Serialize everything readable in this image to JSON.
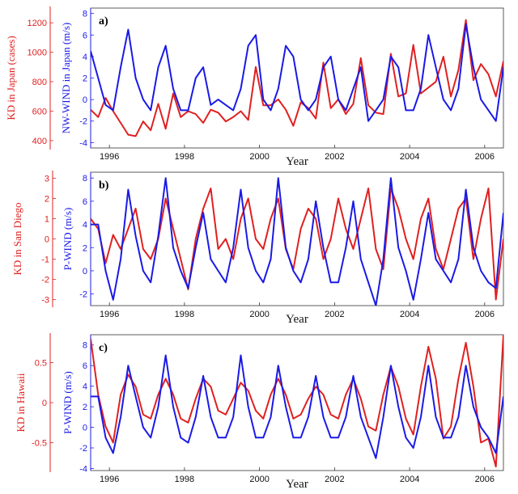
{
  "colors": {
    "kd": "#e02020",
    "wind": "#1a1ae6",
    "frame": "#333333"
  },
  "chart_data": [
    {
      "type": "line",
      "panel_label": "a)",
      "xlabel": "Year",
      "x_ticks": [
        "1996",
        "1998",
        "2000",
        "2002",
        "2004",
        "2006"
      ],
      "xlim": [
        1995.5,
        2006.5
      ],
      "y_left": {
        "label": "KD in Japan (cases)",
        "ticks": [
          "400",
          "600",
          "800",
          "1000",
          "1200"
        ],
        "lim": [
          350,
          1300
        ]
      },
      "y_right": {
        "label": "NW-WIND in Japan (m/s)",
        "ticks": [
          "-4",
          "-2",
          "0",
          "2",
          "4",
          "6",
          "8"
        ],
        "lim": [
          -4.5,
          8.5
        ]
      },
      "series": [
        {
          "axis": "left",
          "color_key": "kd",
          "x": [
            1995.5,
            1995.7,
            1995.9,
            1996.1,
            1996.3,
            1996.5,
            1996.7,
            1996.9,
            1997.1,
            1997.3,
            1997.5,
            1997.7,
            1997.9,
            1998.1,
            1998.3,
            1998.5,
            1998.7,
            1998.9,
            1999.1,
            1999.3,
            1999.5,
            1999.7,
            1999.9,
            2000.1,
            2000.3,
            2000.5,
            2000.7,
            2000.9,
            2001.1,
            2001.3,
            2001.5,
            2001.7,
            2001.9,
            2002.1,
            2002.3,
            2002.5,
            2002.7,
            2002.9,
            2003.1,
            2003.3,
            2003.5,
            2003.7,
            2003.9,
            2004.1,
            2004.3,
            2004.5,
            2004.7,
            2004.9,
            2005.1,
            2005.3,
            2005.5,
            2005.7,
            2005.9,
            2006.1,
            2006.3,
            2006.5
          ],
          "y": [
            610,
            560,
            690,
            600,
            520,
            440,
            430,
            530,
            470,
            650,
            480,
            720,
            560,
            600,
            580,
            520,
            610,
            590,
            530,
            560,
            600,
            540,
            900,
            640,
            640,
            680,
            610,
            500,
            660,
            620,
            550,
            930,
            620,
            680,
            580,
            650,
            960,
            640,
            590,
            580,
            990,
            700,
            720,
            1050,
            720,
            760,
            800,
            970,
            700,
            880,
            1220,
            810,
            920,
            850,
            700,
            940
          ]
        },
        {
          "axis": "right",
          "color_key": "wind",
          "x": [
            1995.5,
            1995.7,
            1995.9,
            1996.1,
            1996.3,
            1996.5,
            1996.7,
            1996.9,
            1997.1,
            1997.3,
            1997.5,
            1997.7,
            1997.9,
            1998.1,
            1998.3,
            1998.5,
            1998.7,
            1998.9,
            1999.1,
            1999.3,
            1999.5,
            1999.7,
            1999.9,
            2000.1,
            2000.3,
            2000.5,
            2000.7,
            2000.9,
            2001.1,
            2001.3,
            2001.5,
            2001.7,
            2001.9,
            2002.1,
            2002.3,
            2002.5,
            2002.7,
            2002.9,
            2003.1,
            2003.3,
            2003.5,
            2003.7,
            2003.9,
            2004.1,
            2004.3,
            2004.5,
            2004.7,
            2004.9,
            2005.1,
            2005.3,
            2005.5,
            2005.7,
            2005.9,
            2006.1,
            2006.3,
            2006.5
          ],
          "y": [
            4.5,
            2,
            -0.5,
            -1,
            3,
            6.5,
            2,
            0,
            -1,
            3,
            5,
            1,
            -1,
            -1,
            2,
            3,
            -0.5,
            0,
            -0.5,
            -1,
            1,
            5,
            6,
            0,
            -1,
            1,
            5,
            4,
            0,
            -1,
            0,
            3,
            4,
            0,
            -1,
            1,
            3,
            -2,
            -1,
            0,
            4,
            3,
            -1,
            -1,
            1,
            6,
            3,
            0,
            -1,
            1,
            7,
            3,
            0,
            -1,
            -2,
            3
          ]
        }
      ]
    },
    {
      "type": "line",
      "panel_label": "b)",
      "xlabel": "Year",
      "x_ticks": [
        "1996",
        "1998",
        "2000",
        "2002",
        "2004",
        "2006"
      ],
      "xlim": [
        1995.5,
        2006.5
      ],
      "y_left": {
        "label": "KD in San Diego",
        "ticks": [
          "-3",
          "-2",
          "-1",
          "0",
          "1",
          "2",
          "3"
        ],
        "lim": [
          -3.3,
          3.3
        ]
      },
      "y_right": {
        "label": "P-WIND (m/s)",
        "ticks": [
          "-2",
          "0",
          "2",
          "4",
          "6",
          "8"
        ],
        "lim": [
          -3,
          8.5
        ]
      },
      "series": [
        {
          "axis": "left",
          "color_key": "kd",
          "x": [
            1995.5,
            1995.7,
            1995.9,
            1996.1,
            1996.3,
            1996.5,
            1996.7,
            1996.9,
            1997.1,
            1997.3,
            1997.5,
            1997.7,
            1997.9,
            1998.1,
            1998.3,
            1998.5,
            1998.7,
            1998.9,
            1999.1,
            1999.3,
            1999.5,
            1999.7,
            1999.9,
            2000.1,
            2000.3,
            2000.5,
            2000.7,
            2000.9,
            2001.1,
            2001.3,
            2001.5,
            2001.7,
            2001.9,
            2002.1,
            2002.3,
            2002.5,
            2002.7,
            2002.9,
            2003.1,
            2003.3,
            2003.5,
            2003.7,
            2003.9,
            2004.1,
            2004.3,
            2004.5,
            2004.7,
            2004.9,
            2005.1,
            2005.3,
            2005.5,
            2005.7,
            2005.9,
            2006.1,
            2006.3,
            2006.5
          ],
          "y": [
            1,
            0.5,
            -1.2,
            0.2,
            -0.5,
            0.5,
            1.5,
            -0.5,
            -1,
            0,
            2,
            0.5,
            -1,
            -2.5,
            0,
            1.5,
            2.5,
            -0.5,
            0,
            -1,
            1,
            2,
            0,
            -0.5,
            1,
            2,
            -0.5,
            -1.5,
            0.5,
            1.5,
            1,
            -1,
            0,
            2,
            0.5,
            -0.5,
            1,
            2.5,
            -0.5,
            -1.5,
            2.5,
            1.5,
            0,
            -1,
            1,
            2,
            -0.5,
            -1.5,
            0,
            1.5,
            2,
            -1,
            1,
            2.5,
            -3,
            0
          ]
        },
        {
          "axis": "right",
          "color_key": "wind",
          "x": [
            1995.5,
            1995.7,
            1995.9,
            1996.1,
            1996.3,
            1996.5,
            1996.7,
            1996.9,
            1997.1,
            1997.3,
            1997.5,
            1997.7,
            1997.9,
            1998.1,
            1998.3,
            1998.5,
            1998.7,
            1998.9,
            1999.1,
            1999.3,
            1999.5,
            1999.7,
            1999.9,
            2000.1,
            2000.3,
            2000.5,
            2000.7,
            2000.9,
            2001.1,
            2001.3,
            2001.5,
            2001.7,
            2001.9,
            2002.1,
            2002.3,
            2002.5,
            2002.7,
            2002.9,
            2003.1,
            2003.3,
            2003.5,
            2003.7,
            2003.9,
            2004.1,
            2004.3,
            2004.5,
            2004.7,
            2004.9,
            2005.1,
            2005.3,
            2005.5,
            2005.7,
            2005.9,
            2006.1,
            2006.3,
            2006.5
          ],
          "y": [
            4,
            4,
            0,
            -2.5,
            1,
            7,
            3,
            0,
            -1,
            3,
            8,
            2,
            0,
            -1.5,
            2,
            5,
            1,
            0,
            -1,
            2,
            7,
            2,
            0,
            -1,
            1,
            8,
            2,
            0,
            -1,
            1,
            6,
            2,
            -1,
            -1,
            2,
            6,
            1,
            -1,
            -3,
            1,
            8,
            2,
            0,
            -2.5,
            1,
            5,
            1,
            0,
            -1,
            1,
            7,
            2,
            0,
            -1,
            -1.5,
            5
          ]
        }
      ]
    },
    {
      "type": "line",
      "panel_label": "c)",
      "xlabel": "Year",
      "x_ticks": [
        "1996",
        "1998",
        "2000",
        "2002",
        "2004",
        "2006"
      ],
      "xlim": [
        1995.5,
        2006.5
      ],
      "y_left": {
        "label": "KD in Hawaii",
        "ticks": [
          "-0.5",
          "0",
          "0.5"
        ],
        "lim": [
          -0.85,
          0.85
        ]
      },
      "y_right": {
        "label": "P-WIND (m/s)",
        "ticks": [
          "-4",
          "-2",
          "0",
          "2",
          "4",
          "6",
          "8"
        ],
        "lim": [
          -4.2,
          9
        ]
      },
      "series": [
        {
          "axis": "left",
          "color_key": "kd",
          "x": [
            1995.5,
            1995.7,
            1995.9,
            1996.1,
            1996.3,
            1996.5,
            1996.7,
            1996.9,
            1997.1,
            1997.3,
            1997.5,
            1997.7,
            1997.9,
            1998.1,
            1998.3,
            1998.5,
            1998.7,
            1998.9,
            1999.1,
            1999.3,
            1999.5,
            1999.7,
            1999.9,
            2000.1,
            2000.3,
            2000.5,
            2000.7,
            2000.9,
            2001.1,
            2001.3,
            2001.5,
            2001.7,
            2001.9,
            2002.1,
            2002.3,
            2002.5,
            2002.7,
            2002.9,
            2003.1,
            2003.3,
            2003.5,
            2003.7,
            2003.9,
            2004.1,
            2004.3,
            2004.5,
            2004.7,
            2004.9,
            2005.1,
            2005.3,
            2005.5,
            2005.7,
            2005.9,
            2006.1,
            2006.3,
            2006.5
          ],
          "y": [
            0.8,
            0.1,
            -0.3,
            -0.5,
            0.1,
            0.35,
            0.2,
            -0.15,
            -0.2,
            0.1,
            0.3,
            0.1,
            -0.2,
            -0.25,
            0.05,
            0.3,
            0.2,
            -0.1,
            -0.15,
            0.05,
            0.25,
            0.15,
            -0.1,
            -0.2,
            0.1,
            0.3,
            0.1,
            -0.2,
            -0.15,
            0.05,
            0.2,
            0.1,
            -0.15,
            -0.2,
            0.1,
            0.3,
            0.05,
            -0.3,
            -0.35,
            0.1,
            0.45,
            0.2,
            -0.2,
            -0.4,
            0.2,
            0.7,
            0.3,
            -0.45,
            -0.3,
            0.3,
            0.75,
            0.2,
            -0.5,
            -0.45,
            -0.8,
            0.85
          ]
        },
        {
          "axis": "right",
          "color_key": "wind",
          "x": [
            1995.5,
            1995.7,
            1995.9,
            1996.1,
            1996.3,
            1996.5,
            1996.7,
            1996.9,
            1997.1,
            1997.3,
            1997.5,
            1997.7,
            1997.9,
            1998.1,
            1998.3,
            1998.5,
            1998.7,
            1998.9,
            1999.1,
            1999.3,
            1999.5,
            1999.7,
            1999.9,
            2000.1,
            2000.3,
            2000.5,
            2000.7,
            2000.9,
            2001.1,
            2001.3,
            2001.5,
            2001.7,
            2001.9,
            2002.1,
            2002.3,
            2002.5,
            2002.7,
            2002.9,
            2003.1,
            2003.3,
            2003.5,
            2003.7,
            2003.9,
            2004.1,
            2004.3,
            2004.5,
            2004.7,
            2004.9,
            2005.1,
            2005.3,
            2005.5,
            2005.7,
            2005.9,
            2006.1,
            2006.3,
            2006.5
          ],
          "y": [
            3,
            3,
            -1,
            -2.5,
            1,
            6,
            3,
            0,
            -1,
            2,
            7,
            2,
            -1,
            -1.5,
            1,
            5,
            1,
            -1,
            -1,
            1,
            7,
            2,
            -1,
            -1,
            1,
            6,
            2,
            -1,
            -1,
            1,
            5,
            1,
            -1,
            -1,
            1,
            5,
            1,
            -1,
            -3,
            1,
            6,
            2,
            -1,
            -2,
            1,
            6,
            1,
            -1,
            -1,
            1,
            6,
            2,
            0,
            -1,
            -2.5,
            3
          ]
        }
      ]
    }
  ]
}
